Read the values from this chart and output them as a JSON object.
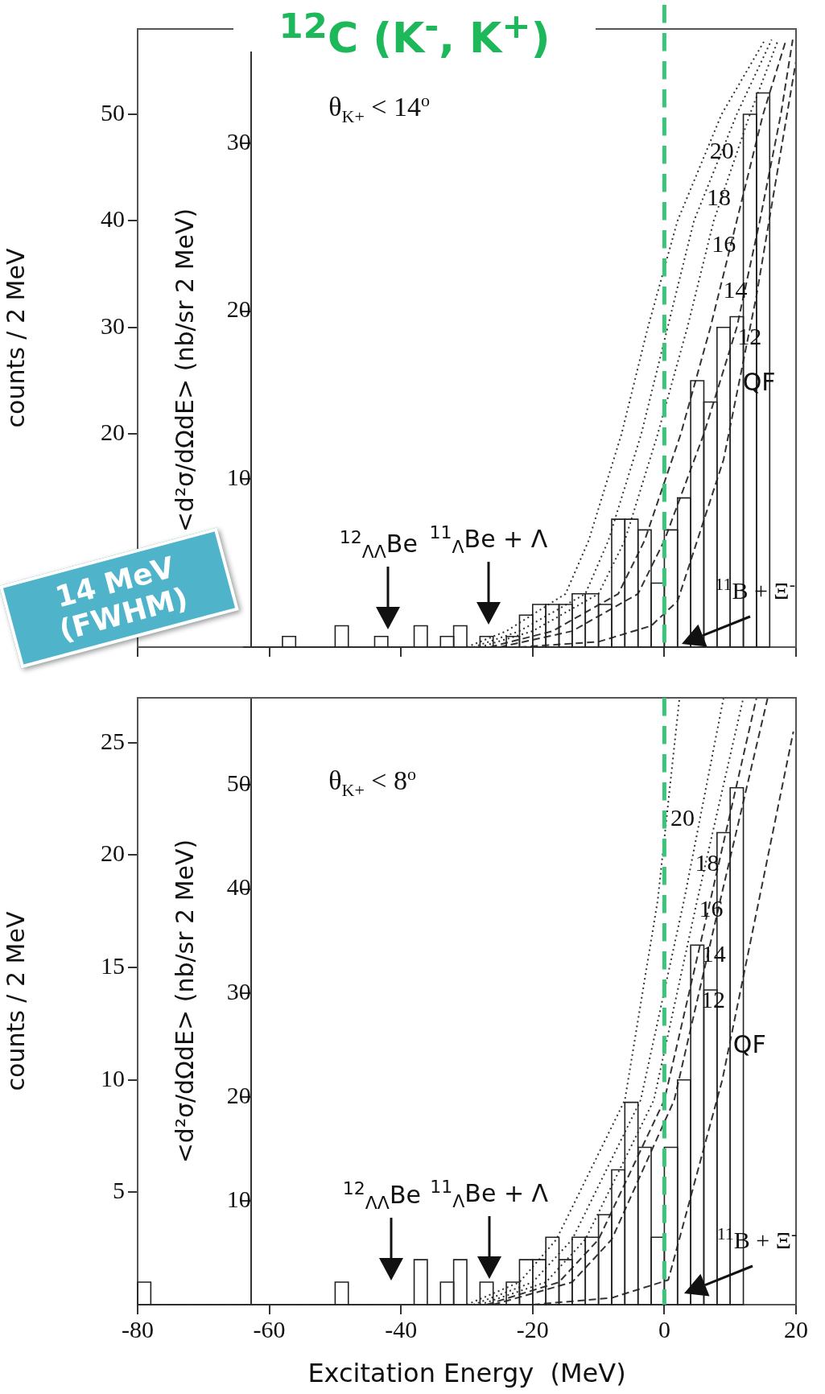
{
  "chart_data": [
    {
      "type": "histogram",
      "title": "$^{12}$C (K$^{-}$, K$^{+}$)",
      "ylabel": "counts / 2 MeV",
      "y2label": "<d²σ/dΩdE> (nb/sr 2 MeV)",
      "color": "#222222",
      "bins": [
        -80,
        -78,
        -76,
        -74,
        -72,
        -70,
        -68,
        -66,
        -64,
        -62,
        -60,
        -58,
        -56,
        -54,
        -52,
        -50,
        -48,
        -46,
        -44,
        -42,
        -40,
        -38,
        -36,
        -34,
        -32,
        -30,
        -28,
        -26,
        -24,
        -22,
        -20,
        -18,
        -16,
        -14,
        -12,
        -10,
        -8,
        -6,
        -4,
        -2,
        0,
        2,
        4,
        6,
        8,
        10,
        12,
        14,
        16,
        18,
        20
      ],
      "values": [
        null,
        null,
        null,
        null,
        null,
        null,
        null,
        null,
        0,
        0,
        0,
        1,
        0,
        0,
        0,
        2,
        0,
        0,
        1,
        0,
        0,
        2,
        0,
        1,
        2,
        0,
        1,
        0,
        1,
        3,
        4,
        4,
        4,
        5,
        5,
        4,
        12,
        12,
        11,
        6,
        11,
        14,
        25,
        23,
        30,
        31,
        50,
        52,
        null,
        null
      ],
      "series": [
        {
          "name": "20",
          "type": "line",
          "color": "#333333",
          "line_style": "dotted",
          "x": [
            -30,
            -24,
            -15,
            -11.5,
            -6.5,
            -2.5,
            2,
            8.7,
            15.3
          ],
          "values": [
            0,
            1.5,
            5,
            10,
            20,
            30,
            40,
            50,
            57
          ]
        },
        {
          "name": "18",
          "type": "line",
          "color": "#333333",
          "line_style": "dotted",
          "x": [
            -29,
            -22,
            -12,
            -8.5,
            -3.5,
            0.5,
            4.5,
            11,
            16.3
          ],
          "values": [
            0,
            1.5,
            5,
            10,
            20,
            30,
            40,
            50,
            57
          ]
        },
        {
          "name": "16",
          "type": "line",
          "color": "#333333",
          "line_style": "dotted",
          "x": [
            -28,
            -20,
            -10,
            -6,
            -1,
            3.5,
            7.5,
            13,
            17.3
          ],
          "values": [
            0,
            1.5,
            5,
            10,
            20,
            30,
            40,
            50,
            57
          ]
        },
        {
          "name": "14",
          "type": "line",
          "color": "#333333",
          "line_style": "dashed",
          "x": [
            -26.5,
            -17,
            -7,
            -3,
            2.5,
            7,
            11,
            15,
            18.5
          ],
          "values": [
            0,
            1.5,
            5,
            10,
            20,
            30,
            40,
            50,
            57
          ]
        },
        {
          "name": "12",
          "type": "line",
          "color": "#333333",
          "line_style": "dashed",
          "x": [
            -25,
            -14,
            -4,
            0,
            6,
            11,
            14.5,
            17.7,
            19.5
          ],
          "values": [
            0,
            1.5,
            5,
            10,
            20,
            30,
            40,
            50,
            57
          ]
        },
        {
          "name": "QF",
          "type": "line",
          "color": "#333333",
          "line_style": "dashed",
          "x": [
            -22,
            -10,
            -2,
            2,
            9,
            14,
            20
          ],
          "values": [
            0,
            0.5,
            2,
            4.3,
            17.6,
            33,
            55
          ]
        }
      ],
      "xlim": [
        -80,
        20
      ],
      "xticks": [
        -80,
        -60,
        -40,
        -20,
        0,
        20
      ],
      "ylim": [
        0,
        58
      ],
      "yticks": [
        20,
        30,
        40,
        50
      ],
      "y2lim": [
        0,
        36.8
      ],
      "y2ticks": [
        10,
        20,
        30
      ],
      "tick_labels": "y",
      "legend": false,
      "marker": "none",
      "ref_lines": [
        {
          "axis": "x",
          "value": 0,
          "color": "#3cc47a",
          "line_style": "dashed"
        }
      ],
      "annotations": [
        "θ$_{K+}$ < 14$^{o}$",
        "14 MeV (FWHM)",
        "$^{12}$$_{ΛΛ}$Be",
        "$^{11}$$_{Λ}$Be + Λ",
        {
          "text": "$^{11}$B + Ξ$^{-}$",
          "x": 2.3,
          "y": 0.3
        }
      ]
    },
    {
      "type": "histogram",
      "xlabel": "Excitation Energy  (MeV)",
      "ylabel": "counts / 2 MeV",
      "y2label": "<d²σ/dΩdE> (nb/sr 2 MeV)",
      "color": "#222222",
      "bins": [
        -80,
        -78,
        -76,
        -74,
        -72,
        -70,
        -68,
        -66,
        -64,
        -62,
        -60,
        -58,
        -56,
        -54,
        -52,
        -50,
        -48,
        -46,
        -44,
        -42,
        -40,
        -38,
        -36,
        -34,
        -32,
        -30,
        -28,
        -26,
        -24,
        -22,
        -20,
        -18,
        -16,
        -14,
        -12,
        -10,
        -8,
        -6,
        -4,
        -2,
        0,
        2,
        4,
        6,
        8,
        10,
        12,
        14,
        16,
        18,
        20
      ],
      "values": [
        1,
        0,
        0,
        0,
        0,
        0,
        0,
        0,
        0,
        0,
        0,
        0,
        0,
        0,
        0,
        1,
        0,
        0,
        0,
        0,
        0,
        2,
        0,
        1,
        2,
        0,
        1,
        0,
        1,
        2,
        2,
        3,
        2,
        3,
        3,
        4,
        6,
        9,
        7,
        3,
        7,
        10,
        16,
        14,
        21,
        23,
        null,
        null,
        null,
        null
      ],
      "series": [
        {
          "name": "20",
          "type": "line",
          "color": "#333333",
          "line_style": "dotted",
          "x": [
            -30,
            -22,
            -16.4,
            -6,
            -1,
            2.3
          ],
          "values": [
            0,
            1,
            2.9,
            9.1,
            18,
            27
          ]
        },
        {
          "name": "18",
          "type": "line",
          "color": "#333333",
          "line_style": "dotted",
          "x": [
            -29,
            -20,
            -14,
            -3.6,
            3,
            9
          ],
          "values": [
            0,
            1,
            2.9,
            9.1,
            18,
            27
          ]
        },
        {
          "name": "16",
          "type": "line",
          "color": "#333333",
          "line_style": "dotted",
          "x": [
            -28,
            -18,
            -12,
            -1.6,
            5,
            12
          ],
          "values": [
            0,
            1,
            2.9,
            9.1,
            18,
            27
          ]
        },
        {
          "name": "14",
          "type": "line",
          "color": "#333333",
          "line_style": "dashed",
          "x": [
            -27,
            -16,
            -10,
            0,
            7,
            14
          ],
          "values": [
            0,
            1,
            2.9,
            9.1,
            18,
            27
          ]
        },
        {
          "name": "12",
          "type": "line",
          "color": "#333333",
          "line_style": "dashed",
          "x": [
            -26,
            -14,
            -8,
            1.5,
            8.5,
            15.7
          ],
          "values": [
            0,
            1,
            2.9,
            9.1,
            18,
            27
          ]
        },
        {
          "name": "QF",
          "type": "line",
          "color": "#333333",
          "line_style": "dashed",
          "x": [
            -20,
            -8,
            0.6,
            8.8,
            19.6
          ],
          "values": [
            0,
            0.3,
            1.1,
            10,
            25.5
          ]
        }
      ],
      "xlim": [
        -80,
        20
      ],
      "xticks": [
        -80,
        -60,
        -40,
        -20,
        0,
        20
      ],
      "ylim": [
        0,
        27
      ],
      "yticks": [
        5,
        10,
        15,
        20,
        25
      ],
      "y2lim": [
        0,
        58.4
      ],
      "y2ticks": [
        10,
        20,
        30,
        40,
        50
      ],
      "legend": false,
      "marker": "none",
      "ref_lines": [
        {
          "axis": "x",
          "value": 0,
          "color": "#3cc47a",
          "line_style": "dashed"
        }
      ],
      "annotations": [
        "θ$_{K+}$ < 8$^{o}$",
        "$^{12}$$_{ΛΛ}$Be",
        "$^{11}$$_{Λ}$Be + Λ",
        {
          "text": "$^{11}$B + Ξ$^{-}$",
          "x": 2.6,
          "y": 0.5
        }
      ]
    }
  ]
}
